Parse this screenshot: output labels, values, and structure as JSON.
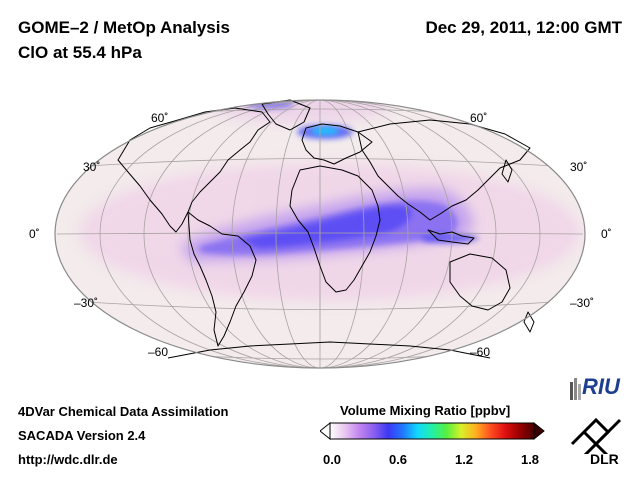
{
  "header": {
    "title_line1": "GOME–2 / MetOp Analysis",
    "title_line2": "ClO at 55.4 hPa",
    "datetime": "Dec 29, 2011, 12:00 GMT"
  },
  "map": {
    "projection": "hammer-aitoff",
    "lat_labels_left": [
      "60˚",
      "30˚",
      "0˚",
      "–30˚",
      "–60"
    ],
    "lat_labels_right": [
      "60˚",
      "30˚",
      "0˚",
      "–30˚",
      "–60"
    ],
    "background_color": "#f3ebec"
  },
  "footer": {
    "line1": "4DVar Chemical Data Assimilation",
    "line2": "SACADA Version 2.4",
    "line3": "http://wdc.dlr.de"
  },
  "colorbar": {
    "title": "Volume Mixing Ratio [ppbv]",
    "min": 0.0,
    "max": 1.8,
    "ticks": [
      "0.0",
      "0.6",
      "1.2",
      "1.8"
    ],
    "colors": [
      "#ffffff",
      "#e9c8f0",
      "#c286f0",
      "#8a60f0",
      "#3d38f5",
      "#1f78ff",
      "#11d8ff",
      "#22f0a8",
      "#57f040",
      "#d8f02a",
      "#ffb020",
      "#ff5020",
      "#e01010",
      "#9a0000",
      "#4a0000"
    ]
  },
  "logos": {
    "riu": "RIU",
    "dlr": "DLR"
  }
}
